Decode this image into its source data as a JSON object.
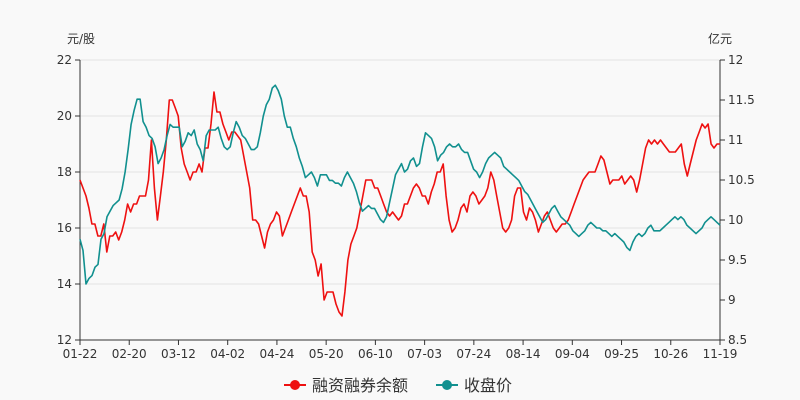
{
  "chart_data": {
    "type": "line",
    "left_axis": {
      "unit": "元/股",
      "ylim": [
        12,
        22
      ],
      "ticks": [
        12,
        14,
        16,
        18,
        20,
        22
      ]
    },
    "right_axis": {
      "unit": "亿元",
      "ylim": [
        8.5,
        12
      ],
      "ticks": [
        "8.5",
        "9",
        "9.5",
        "10",
        "10.5",
        "11",
        "11.5",
        "12"
      ]
    },
    "x_ticks": [
      "01-22",
      "02-20",
      "03-12",
      "04-02",
      "04-24",
      "05-20",
      "06-10",
      "07-03",
      "07-24",
      "08-14",
      "09-04",
      "09-25",
      "10-26",
      "11-19"
    ],
    "grid": "horizontal",
    "legend_position": "bottom-center",
    "series": [
      {
        "name": "融资融券余额",
        "axis": "right",
        "color": "#ee1111",
        "values": [
          10.5,
          10.4,
          10.3,
          10.15,
          9.95,
          9.95,
          9.8,
          9.8,
          9.95,
          9.6,
          9.8,
          9.8,
          9.85,
          9.75,
          9.85,
          10.0,
          10.2,
          10.1,
          10.2,
          10.2,
          10.3,
          10.3,
          10.3,
          10.5,
          11.0,
          10.4,
          10.0,
          10.3,
          10.6,
          11.0,
          11.5,
          11.5,
          11.4,
          11.3,
          10.9,
          10.7,
          10.6,
          10.5,
          10.6,
          10.6,
          10.7,
          10.6,
          10.9,
          10.9,
          11.2,
          11.6,
          11.35,
          11.35,
          11.2,
          11.1,
          11.0,
          11.1,
          11.1,
          11.05,
          11.0,
          10.8,
          10.6,
          10.4,
          10.0,
          10.0,
          9.95,
          9.8,
          9.65,
          9.85,
          9.95,
          10.0,
          10.1,
          10.05,
          9.8,
          9.9,
          10.0,
          10.1,
          10.2,
          10.3,
          10.4,
          10.3,
          10.3,
          10.1,
          9.6,
          9.5,
          9.3,
          9.45,
          9.0,
          9.1,
          9.1,
          9.1,
          8.95,
          8.85,
          8.8,
          9.1,
          9.5,
          9.7,
          9.8,
          9.9,
          10.1,
          10.3,
          10.5,
          10.5,
          10.5,
          10.4,
          10.4,
          10.3,
          10.2,
          10.1,
          10.05,
          10.1,
          10.05,
          10.0,
          10.05,
          10.2,
          10.2,
          10.3,
          10.4,
          10.45,
          10.4,
          10.3,
          10.3,
          10.2,
          10.35,
          10.45,
          10.6,
          10.6,
          10.7,
          10.3,
          10.0,
          9.85,
          9.9,
          10.0,
          10.15,
          10.2,
          10.1,
          10.3,
          10.35,
          10.3,
          10.2,
          10.25,
          10.3,
          10.4,
          10.6,
          10.5,
          10.3,
          10.1,
          9.9,
          9.85,
          9.9,
          10.0,
          10.3,
          10.4,
          10.4,
          10.1,
          10.0,
          10.15,
          10.1,
          10.0,
          9.85,
          9.95,
          10.05,
          10.1,
          10.0,
          9.9,
          9.85,
          9.9,
          9.95,
          9.95,
          10.0,
          10.1,
          10.2,
          10.3,
          10.4,
          10.5,
          10.55,
          10.6,
          10.6,
          10.6,
          10.7,
          10.8,
          10.75,
          10.6,
          10.45,
          10.5,
          10.5,
          10.5,
          10.55,
          10.45,
          10.5,
          10.55,
          10.5,
          10.35,
          10.5,
          10.7,
          10.9,
          11.0,
          10.95,
          11.0,
          10.95,
          11.0,
          10.95,
          10.9,
          10.85,
          10.85,
          10.85,
          10.9,
          10.95,
          10.7,
          10.55,
          10.7,
          10.85,
          11.0,
          11.1,
          11.2,
          11.15,
          11.2,
          10.95,
          10.9,
          10.95,
          10.95
        ]
      },
      {
        "name": "收盘价",
        "axis": "left",
        "color": "#11908f",
        "values": [
          15.6,
          15.2,
          14.0,
          14.2,
          14.3,
          14.6,
          14.7,
          15.6,
          15.8,
          16.4,
          16.6,
          16.8,
          16.9,
          17.0,
          17.4,
          18.0,
          18.8,
          19.7,
          20.2,
          20.6,
          20.6,
          19.8,
          19.6,
          19.3,
          19.2,
          18.9,
          18.3,
          18.5,
          18.8,
          19.3,
          19.7,
          19.6,
          19.6,
          19.6,
          18.9,
          19.1,
          19.4,
          19.3,
          19.5,
          19.0,
          18.8,
          18.4,
          19.3,
          19.5,
          19.5,
          19.5,
          19.6,
          19.2,
          18.9,
          18.8,
          18.9,
          19.4,
          19.8,
          19.6,
          19.3,
          19.2,
          19.0,
          18.8,
          18.8,
          18.9,
          19.4,
          20.0,
          20.4,
          20.6,
          21.0,
          21.1,
          20.9,
          20.6,
          20.0,
          19.6,
          19.6,
          19.2,
          18.9,
          18.5,
          18.2,
          17.8,
          17.9,
          18.0,
          17.8,
          17.5,
          17.9,
          17.9,
          17.9,
          17.7,
          17.7,
          17.6,
          17.6,
          17.5,
          17.8,
          18.0,
          17.8,
          17.6,
          17.3,
          16.9,
          16.6,
          16.7,
          16.8,
          16.7,
          16.7,
          16.5,
          16.3,
          16.2,
          16.4,
          16.9,
          17.4,
          17.9,
          18.1,
          18.3,
          18.0,
          18.1,
          18.4,
          18.5,
          18.2,
          18.3,
          18.9,
          19.4,
          19.3,
          19.2,
          18.9,
          18.4,
          18.6,
          18.7,
          18.9,
          19.0,
          18.9,
          18.9,
          19.0,
          18.8,
          18.7,
          18.7,
          18.4,
          18.1,
          18.0,
          17.8,
          18.0,
          18.3,
          18.5,
          18.6,
          18.7,
          18.6,
          18.5,
          18.2,
          18.1,
          18.0,
          17.9,
          17.8,
          17.7,
          17.5,
          17.3,
          17.2,
          17.0,
          16.8,
          16.6,
          16.4,
          16.2,
          16.3,
          16.5,
          16.7,
          16.8,
          16.6,
          16.4,
          16.3,
          16.2,
          16.1,
          15.9,
          15.8,
          15.7,
          15.8,
          15.9,
          16.1,
          16.2,
          16.1,
          16.0,
          16.0,
          15.9,
          15.9,
          15.8,
          15.7,
          15.8,
          15.7,
          15.6,
          15.5,
          15.3,
          15.2,
          15.5,
          15.7,
          15.8,
          15.7,
          15.8,
          16.0,
          16.1,
          15.9,
          15.9,
          15.9,
          16.0,
          16.1,
          16.2,
          16.3,
          16.4,
          16.3,
          16.4,
          16.3,
          16.1,
          16.0,
          15.9,
          15.8,
          15.9,
          16.0,
          16.2,
          16.3,
          16.4,
          16.3,
          16.2,
          16.1
        ]
      }
    ]
  }
}
